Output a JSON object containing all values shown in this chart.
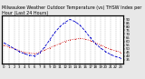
{
  "title": "Milwaukee Weather Outdoor Temperature (vs) THSW Index per Hour (Last 24 Hours)",
  "title_fontsize": 3.5,
  "background_color": "#e8e8e8",
  "plot_bg_color": "#ffffff",
  "hours": [
    0,
    1,
    2,
    3,
    4,
    5,
    6,
    7,
    8,
    9,
    10,
    11,
    12,
    13,
    14,
    15,
    16,
    17,
    18,
    19,
    20,
    21,
    22,
    23
  ],
  "temp": [
    55,
    52,
    50,
    47,
    45,
    44,
    43,
    45,
    48,
    51,
    54,
    57,
    60,
    62,
    63,
    64,
    63,
    61,
    58,
    55,
    52,
    49,
    47,
    45
  ],
  "thsw": [
    58,
    54,
    50,
    46,
    43,
    41,
    40,
    44,
    52,
    62,
    72,
    80,
    86,
    90,
    87,
    82,
    74,
    65,
    57,
    51,
    46,
    42,
    39,
    37
  ],
  "temp_color": "#cc0000",
  "thsw_color": "#0000cc",
  "ylim": [
    30,
    95
  ],
  "yticks_right": [
    35,
    40,
    45,
    50,
    55,
    60,
    65,
    70,
    75,
    80,
    85,
    90
  ],
  "grid_color": "#999999",
  "x_tick_fontsize": 2.8,
  "y_tick_fontsize": 2.8,
  "line_width": 0.6,
  "marker_size": 1.0
}
